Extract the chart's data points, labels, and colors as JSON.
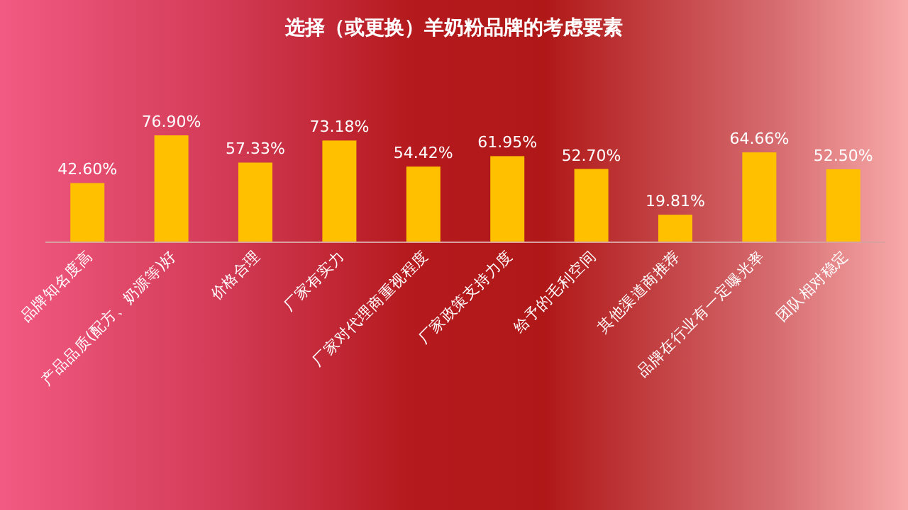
{
  "chart_data": {
    "type": "bar",
    "title": "选择（或更换）羊奶粉品牌的考虑要素",
    "categories": [
      "品牌知名度高",
      "产品品质(配方、奶源等)好",
      "价格合理",
      "厂家有实力",
      "厂家对代理商重视程度",
      "厂家政策支持力度",
      "给予的毛利空间",
      "其他渠道商推荐",
      "品牌在行业有一定曝光率",
      "团队相对稳定"
    ],
    "values": [
      42.6,
      76.9,
      57.33,
      73.18,
      54.42,
      61.95,
      52.7,
      19.81,
      64.66,
      52.5
    ],
    "value_labels": [
      "42.60%",
      "76.90%",
      "57.33%",
      "73.18%",
      "54.42%",
      "61.95%",
      "52.70%",
      "19.81%",
      "64.66%",
      "52.50%"
    ],
    "color": "#ffc000"
  }
}
